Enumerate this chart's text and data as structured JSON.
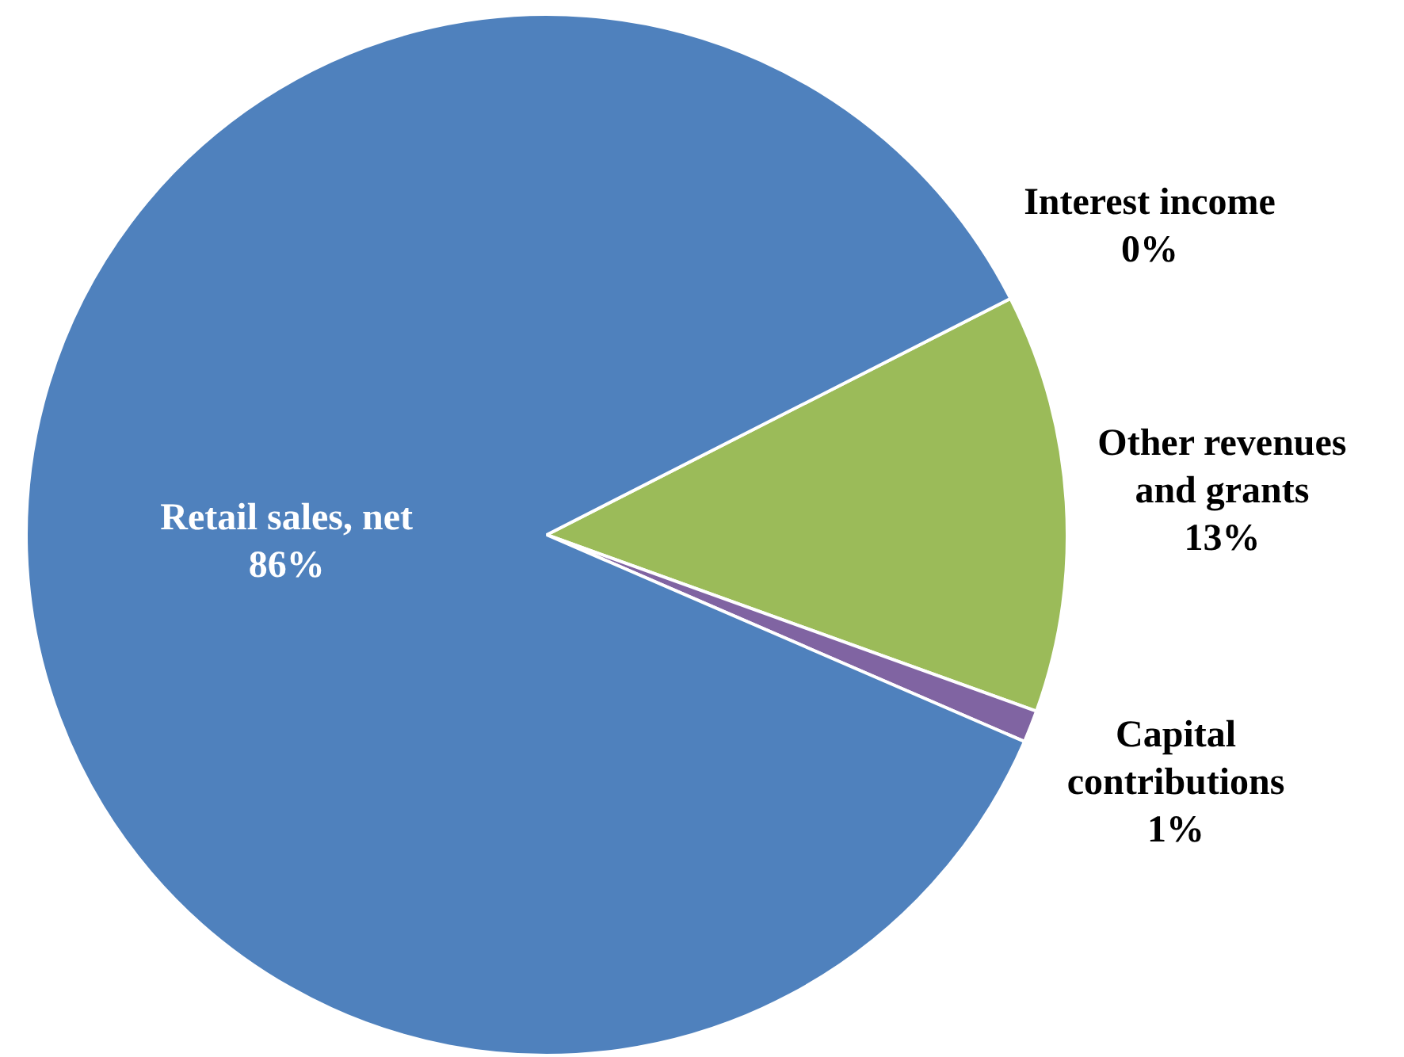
{
  "chart_data": {
    "type": "pie",
    "categories": [
      "Interest income",
      "Other revenues and grants",
      "Capital contributions",
      "Retail sales, net"
    ],
    "values": [
      0,
      13,
      1,
      86
    ],
    "colors": [
      "#c0504d",
      "#9bbb59",
      "#8064a2",
      "#4f81bd"
    ],
    "value_labels": [
      "0%",
      "13%",
      "1%",
      "86%"
    ],
    "legend": false
  }
}
